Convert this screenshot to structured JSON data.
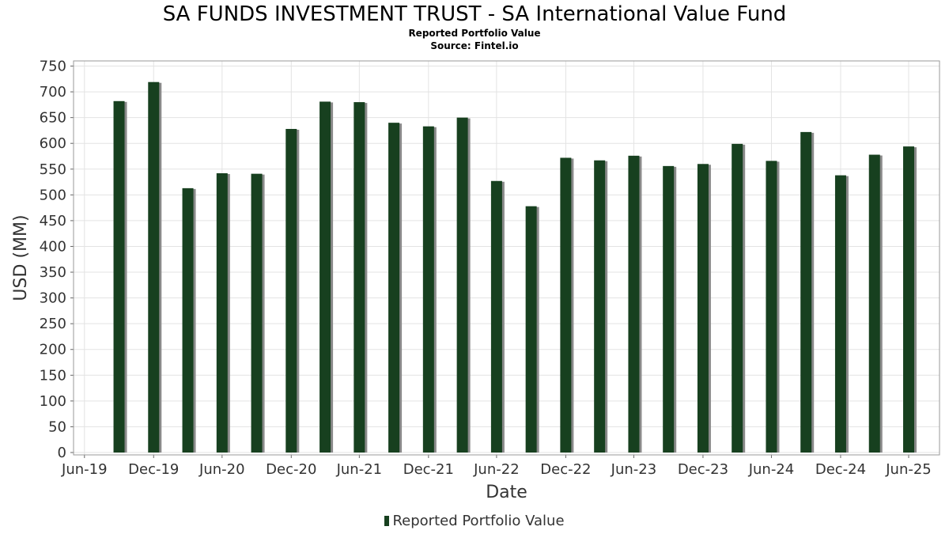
{
  "header": {
    "title": "SA FUNDS INVESTMENT TRUST - SA International Value Fund",
    "subtitle": "Reported Portfolio Value",
    "source": "Source: Fintel.io"
  },
  "colors": {
    "bar": "#17401f",
    "bar_shadow": "#8a8a8a",
    "grid": "#e3e3e3",
    "frame": "#9a9a9a"
  },
  "chart_data": {
    "type": "bar",
    "title": "SA FUNDS INVESTMENT TRUST - SA International Value Fund",
    "subtitle": "Reported Portfolio Value",
    "xlabel": "Date",
    "ylabel": "USD (MM)",
    "ylim": [
      0,
      760
    ],
    "yticks": [
      0,
      50,
      100,
      150,
      200,
      250,
      300,
      350,
      400,
      450,
      500,
      550,
      600,
      650,
      700,
      750
    ],
    "xlim": [
      "2019-06-01",
      "2025-09-20"
    ],
    "xticks": [
      {
        "date": "2019-06-30",
        "label": "Jun-19"
      },
      {
        "date": "2019-12-31",
        "label": "Dec-19"
      },
      {
        "date": "2020-06-30",
        "label": "Jun-20"
      },
      {
        "date": "2020-12-31",
        "label": "Dec-20"
      },
      {
        "date": "2021-06-30",
        "label": "Jun-21"
      },
      {
        "date": "2021-12-31",
        "label": "Dec-21"
      },
      {
        "date": "2022-06-30",
        "label": "Jun-22"
      },
      {
        "date": "2022-12-31",
        "label": "Dec-22"
      },
      {
        "date": "2023-06-30",
        "label": "Jun-23"
      },
      {
        "date": "2023-12-31",
        "label": "Dec-23"
      },
      {
        "date": "2024-06-30",
        "label": "Jun-24"
      },
      {
        "date": "2024-12-31",
        "label": "Dec-24"
      },
      {
        "date": "2025-06-30",
        "label": "Jun-25"
      }
    ],
    "grid": true,
    "legend": "bottom-center",
    "series": [
      {
        "name": "Reported Portfolio Value",
        "points": [
          {
            "date": "2019-09-30",
            "value": 682
          },
          {
            "date": "2019-12-31",
            "value": 719
          },
          {
            "date": "2020-03-31",
            "value": 513
          },
          {
            "date": "2020-06-30",
            "value": 542
          },
          {
            "date": "2020-09-30",
            "value": 541
          },
          {
            "date": "2020-12-31",
            "value": 628
          },
          {
            "date": "2021-03-31",
            "value": 681
          },
          {
            "date": "2021-06-30",
            "value": 680
          },
          {
            "date": "2021-09-30",
            "value": 640
          },
          {
            "date": "2021-12-31",
            "value": 633
          },
          {
            "date": "2022-03-31",
            "value": 650
          },
          {
            "date": "2022-06-30",
            "value": 527
          },
          {
            "date": "2022-09-30",
            "value": 478
          },
          {
            "date": "2022-12-31",
            "value": 572
          },
          {
            "date": "2023-03-31",
            "value": 567
          },
          {
            "date": "2023-06-30",
            "value": 576
          },
          {
            "date": "2023-09-30",
            "value": 556
          },
          {
            "date": "2023-12-31",
            "value": 560
          },
          {
            "date": "2024-03-31",
            "value": 599
          },
          {
            "date": "2024-06-30",
            "value": 566
          },
          {
            "date": "2024-09-30",
            "value": 622
          },
          {
            "date": "2024-12-31",
            "value": 538
          },
          {
            "date": "2025-03-31",
            "value": 578
          },
          {
            "date": "2025-06-30",
            "value": 594
          }
        ]
      }
    ]
  }
}
